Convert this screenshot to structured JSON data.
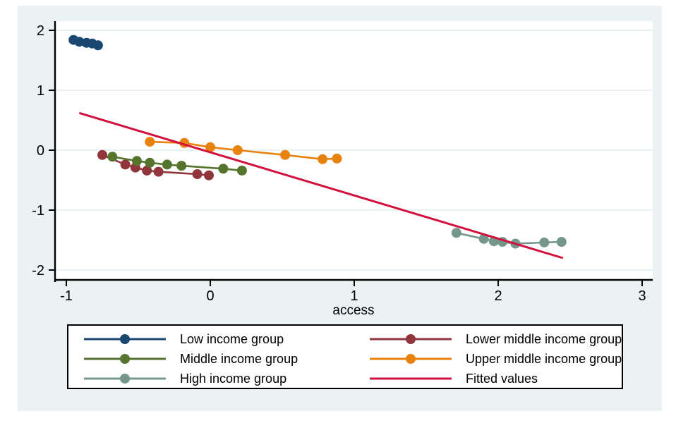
{
  "figure": {
    "background": "#ffffff",
    "graph_bg": "#eaf2f3",
    "plot_bg": "#ffffff",
    "grid_color": "#dfecee",
    "axis_color": "#000000",
    "text_color": "#000000",
    "legend_bg": "#ffffff",
    "legend_border": "#000000"
  },
  "chart_data": {
    "type": "line",
    "title": "",
    "xlabel": "access",
    "ylabel": "",
    "xlim": [
      -1.08,
      3.07
    ],
    "ylim": [
      -2.15,
      2.15
    ],
    "x_ticks": [
      -1,
      0,
      1,
      2,
      3
    ],
    "x_tick_labels": [
      "-1",
      "0",
      "1",
      "2",
      "3"
    ],
    "y_ticks": [
      -2,
      -1,
      0,
      1,
      2
    ],
    "y_tick_labels": [
      "-2",
      "-1",
      "0",
      "1",
      "2"
    ],
    "grid": "horizontal-only",
    "legend_position": "bottom",
    "series": [
      {
        "name": "Low income group",
        "color": "#1a476f",
        "marker": "circle",
        "points": [
          [
            -0.95,
            1.84
          ],
          [
            -0.91,
            1.81
          ],
          [
            -0.86,
            1.79
          ],
          [
            -0.82,
            1.78
          ],
          [
            -0.78,
            1.75
          ]
        ]
      },
      {
        "name": "Lower middle income group",
        "color": "#90353b",
        "marker": "circle",
        "points": [
          [
            -0.75,
            -0.08
          ],
          [
            -0.59,
            -0.24
          ],
          [
            -0.52,
            -0.29
          ],
          [
            -0.44,
            -0.34
          ],
          [
            -0.36,
            -0.36
          ],
          [
            -0.09,
            -0.4
          ],
          [
            -0.01,
            -0.42
          ]
        ]
      },
      {
        "name": "Middle income group",
        "color": "#55752f",
        "marker": "circle",
        "points": [
          [
            -0.68,
            -0.11
          ],
          [
            -0.51,
            -0.18
          ],
          [
            -0.42,
            -0.21
          ],
          [
            -0.3,
            -0.24
          ],
          [
            -0.2,
            -0.26
          ],
          [
            0.09,
            -0.31
          ],
          [
            0.22,
            -0.34
          ]
        ]
      },
      {
        "name": "Upper middle income group",
        "color": "#e8820e",
        "marker": "circle",
        "points": [
          [
            -0.42,
            0.14
          ],
          [
            -0.18,
            0.12
          ],
          [
            0.0,
            0.05
          ],
          [
            0.19,
            0.0
          ],
          [
            0.52,
            -0.08
          ],
          [
            0.78,
            -0.15
          ],
          [
            0.88,
            -0.14
          ]
        ]
      },
      {
        "name": "High income group",
        "color": "#75968b",
        "marker": "circle",
        "points": [
          [
            1.71,
            -1.38
          ],
          [
            1.9,
            -1.48
          ],
          [
            1.97,
            -1.52
          ],
          [
            2.03,
            -1.53
          ],
          [
            2.12,
            -1.56
          ],
          [
            2.32,
            -1.54
          ],
          [
            2.44,
            -1.53
          ]
        ]
      },
      {
        "name": "Fitted values",
        "color": "#d2113c",
        "marker": "none",
        "points": [
          [
            -0.91,
            0.62
          ],
          [
            2.45,
            -1.8
          ]
        ]
      }
    ]
  },
  "legend": {
    "columns": [
      [
        0,
        2,
        4
      ],
      [
        1,
        3,
        5
      ]
    ]
  }
}
